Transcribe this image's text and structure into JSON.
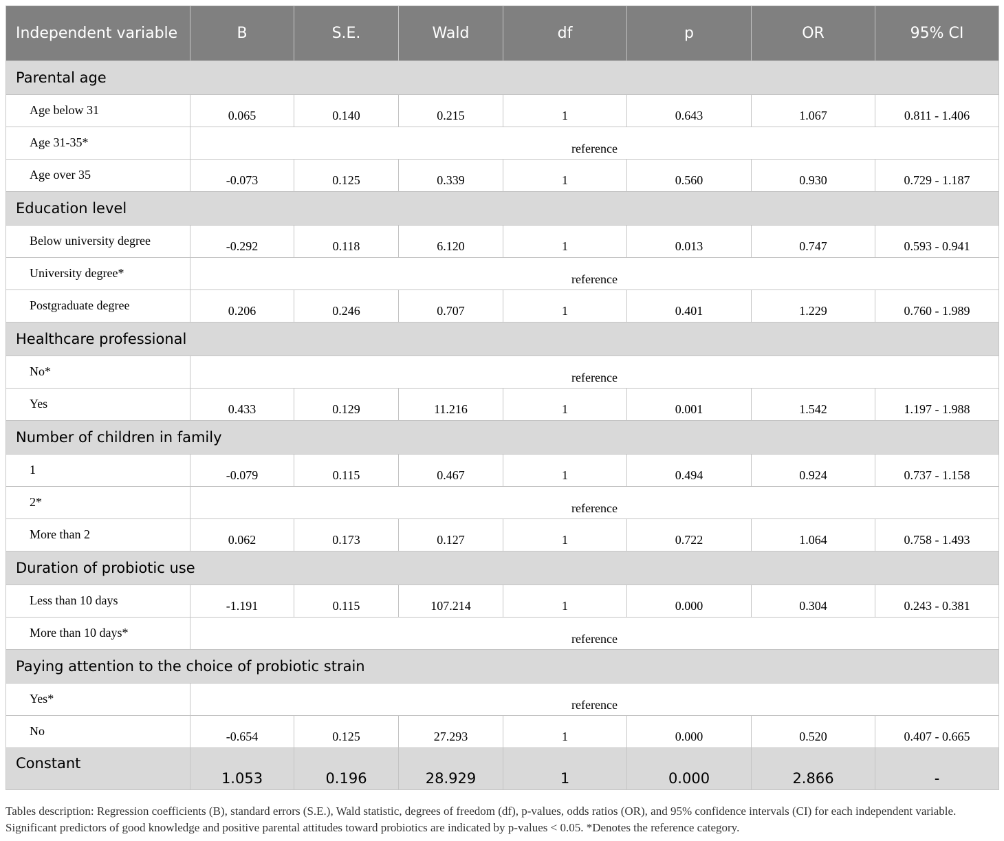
{
  "table": {
    "header": [
      "Independent variable",
      "B",
      "S.E.",
      "Wald",
      "df",
      "p",
      "OR",
      "95% CI"
    ],
    "sections": [
      {
        "title": "Parental age",
        "rows": [
          {
            "label": "Age below 31",
            "cells": [
              "0.065",
              "0.140",
              "0.215",
              "1",
              "0.643",
              "1.067",
              "0.811 - 1.406"
            ]
          },
          {
            "label": "Age 31-35*",
            "reference": "reference"
          },
          {
            "label": "Age over 35",
            "cells": [
              "-0.073",
              "0.125",
              "0.339",
              "1",
              "0.560",
              "0.930",
              "0.729 - 1.187"
            ]
          }
        ]
      },
      {
        "title": "Education level",
        "rows": [
          {
            "label": "Below university degree",
            "cells": [
              "-0.292",
              "0.118",
              "6.120",
              "1",
              "0.013",
              "0.747",
              "0.593 - 0.941"
            ]
          },
          {
            "label": "University degree*",
            "reference": "reference"
          },
          {
            "label": "Postgraduate degree",
            "cells": [
              "0.206",
              "0.246",
              "0.707",
              "1",
              "0.401",
              "1.229",
              "0.760 - 1.989"
            ]
          }
        ]
      },
      {
        "title": "Healthcare professional",
        "rows": [
          {
            "label": "No*",
            "reference": "reference"
          },
          {
            "label": "Yes",
            "cells": [
              "0.433",
              "0.129",
              "11.216",
              "1",
              "0.001",
              "1.542",
              "1.197 - 1.988"
            ]
          }
        ]
      },
      {
        "title": "Number of children in family",
        "rows": [
          {
            "label": "1",
            "cells": [
              "-0.079",
              "0.115",
              "0.467",
              "1",
              "0.494",
              "0.924",
              "0.737 - 1.158"
            ]
          },
          {
            "label": "2*",
            "reference": "reference"
          },
          {
            "label": "More than 2",
            "cells": [
              "0.062",
              "0.173",
              "0.127",
              "1",
              "0.722",
              "1.064",
              "0.758 - 1.493"
            ]
          }
        ]
      },
      {
        "title": "Duration of probiotic use",
        "rows": [
          {
            "label": "Less than 10 days",
            "cells": [
              "-1.191",
              "0.115",
              "107.214",
              "1",
              "0.000",
              "0.304",
              "0.243 - 0.381"
            ]
          },
          {
            "label": "More than 10 days*",
            "reference": "reference"
          }
        ]
      },
      {
        "title": "Paying attention to the choice of probiotic strain",
        "rows": [
          {
            "label": "Yes*",
            "reference": "reference"
          },
          {
            "label": "No",
            "cells": [
              "-0.654",
              "0.125",
              "27.293",
              "1",
              "0.000",
              "0.520",
              "0.407 - 0.665"
            ]
          }
        ]
      }
    ],
    "constant": {
      "label": "Constant",
      "cells": [
        "1.053",
        "0.196",
        "28.929",
        "1",
        "0.000",
        "2.866",
        "-"
      ]
    }
  },
  "footnote": "Tables description: Regression coefficients (B), standard errors (S.E.), Wald statistic, degrees of freedom (df), p-values, odds ratios (OR), and 95% confidence intervals (CI) for each independent variable. Significant predictors of good knowledge and positive parental attitudes toward probiotics are indicated by p-values < 0.05. *Denotes the reference category."
}
